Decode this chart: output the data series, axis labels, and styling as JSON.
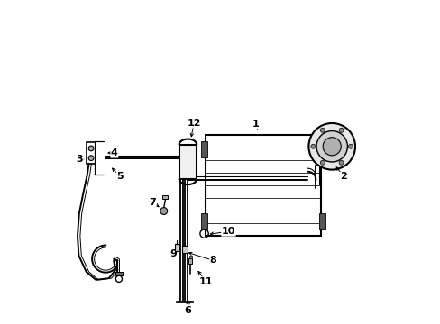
{
  "bg_color": "#ffffff",
  "line_color": "#000000",
  "figsize": [
    4.89,
    3.6
  ],
  "dpi": 100,
  "leaders": {
    "6": [
      0.4,
      0.04,
      0.4,
      0.08
    ],
    "11": [
      0.455,
      0.13,
      0.425,
      0.17
    ],
    "9": [
      0.355,
      0.215,
      0.368,
      0.228
    ],
    "8": [
      0.478,
      0.195,
      0.392,
      0.222
    ],
    "10": [
      0.525,
      0.285,
      0.458,
      0.275
    ],
    "7": [
      0.29,
      0.375,
      0.318,
      0.355
    ],
    "5": [
      0.19,
      0.455,
      0.158,
      0.488
    ],
    "4": [
      0.172,
      0.528,
      0.142,
      0.528
    ],
    "3": [
      0.065,
      0.508,
      0.088,
      0.508
    ],
    "12": [
      0.418,
      0.62,
      0.408,
      0.568
    ],
    "1": [
      0.61,
      0.618,
      0.618,
      0.592
    ],
    "2": [
      0.882,
      0.455,
      0.852,
      0.492
    ]
  }
}
